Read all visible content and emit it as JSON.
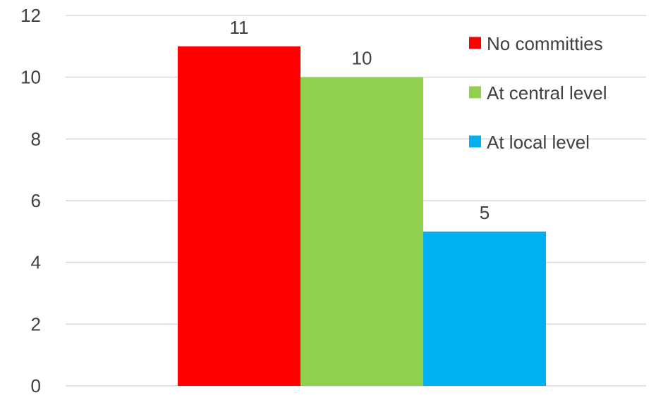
{
  "chart_data": {
    "type": "bar",
    "categories": [
      ""
    ],
    "series": [
      {
        "name": "No committies",
        "values": [
          11
        ],
        "color": "#ff0000"
      },
      {
        "name": "At central level",
        "values": [
          10
        ],
        "color": "#92d050"
      },
      {
        "name": "At local level",
        "values": [
          5
        ],
        "color": "#00b0f0"
      }
    ],
    "ylim": [
      0,
      12
    ],
    "yticks": [
      0,
      2,
      4,
      6,
      8,
      10,
      12
    ],
    "grid": true,
    "legend_position": "top-right",
    "data_labels": true,
    "title": "",
    "xlabel": "",
    "ylabel": ""
  }
}
